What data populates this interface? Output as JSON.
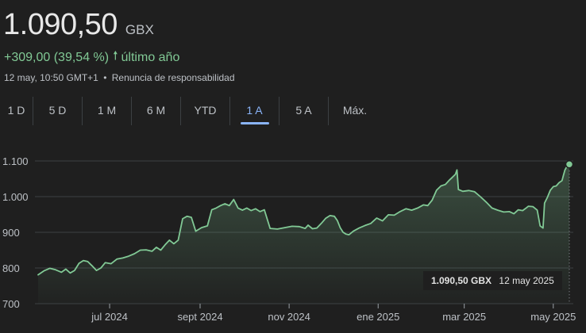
{
  "header": {
    "price": "1.090,50",
    "currency": "GBX",
    "change": "+309,00 (39,54 %)",
    "change_period": "último año",
    "timestamp": "12 may, 10:50 GMT+1",
    "separator": "•",
    "disclaimer": "Renuncia de responsabilidad",
    "up_color": "#81c995"
  },
  "tabs": [
    {
      "label": "1 D",
      "active": false
    },
    {
      "label": "5 D",
      "active": false
    },
    {
      "label": "1 M",
      "active": false
    },
    {
      "label": "6 M",
      "active": false
    },
    {
      "label": "YTD",
      "active": false
    },
    {
      "label": "1 A",
      "active": true
    },
    {
      "label": "5 A",
      "active": false
    },
    {
      "label": "Máx.",
      "active": false
    }
  ],
  "tooltip": {
    "value": "1.090,50 GBX",
    "date": "12 may 2025"
  },
  "chart_data": {
    "type": "area",
    "title": "",
    "xlabel": "",
    "ylabel": "",
    "ylim": [
      700,
      1100
    ],
    "yticks": [
      700,
      800,
      900,
      1000,
      1100
    ],
    "ytick_labels": [
      "700",
      "800",
      "900",
      "1.000",
      "1.100"
    ],
    "xlim": [
      "2024-05-13",
      "2025-05-12"
    ],
    "xticks": [
      "2024-07-01",
      "2024-09-01",
      "2024-11-01",
      "2025-01-01",
      "2025-03-01",
      "2025-05-01"
    ],
    "xtick_labels": [
      "jul 2024",
      "sept 2024",
      "nov 2024",
      "ene 2025",
      "mar 2025",
      "may 2025"
    ],
    "grid": "horizontal",
    "line_color": "#81c995",
    "series": [
      {
        "points": [
          [
            "2024-05-13",
            781
          ],
          [
            "2024-05-17",
            792
          ],
          [
            "2024-05-21",
            799
          ],
          [
            "2024-05-25",
            795
          ],
          [
            "2024-05-29",
            788
          ],
          [
            "2024-06-01",
            797
          ],
          [
            "2024-06-04",
            786
          ],
          [
            "2024-06-07",
            793
          ],
          [
            "2024-06-10",
            813
          ],
          [
            "2024-06-13",
            821
          ],
          [
            "2024-06-16",
            818
          ],
          [
            "2024-06-19",
            806
          ],
          [
            "2024-06-22",
            793
          ],
          [
            "2024-06-25",
            800
          ],
          [
            "2024-06-28",
            815
          ],
          [
            "2024-07-02",
            812
          ],
          [
            "2024-07-06",
            825
          ],
          [
            "2024-07-10",
            828
          ],
          [
            "2024-07-14",
            833
          ],
          [
            "2024-07-18",
            840
          ],
          [
            "2024-07-22",
            850
          ],
          [
            "2024-07-26",
            851
          ],
          [
            "2024-07-30",
            847
          ],
          [
            "2024-08-02",
            858
          ],
          [
            "2024-08-05",
            850
          ],
          [
            "2024-08-08",
            865
          ],
          [
            "2024-08-11",
            878
          ],
          [
            "2024-08-14",
            868
          ],
          [
            "2024-08-17",
            878
          ],
          [
            "2024-08-20",
            938
          ],
          [
            "2024-08-23",
            945
          ],
          [
            "2024-08-26",
            942
          ],
          [
            "2024-08-29",
            903
          ],
          [
            "2024-09-02",
            913
          ],
          [
            "2024-09-06",
            918
          ],
          [
            "2024-09-09",
            963
          ],
          [
            "2024-09-12",
            968
          ],
          [
            "2024-09-15",
            975
          ],
          [
            "2024-09-18",
            980
          ],
          [
            "2024-09-21",
            975
          ],
          [
            "2024-09-24",
            992
          ],
          [
            "2024-09-27",
            968
          ],
          [
            "2024-09-30",
            962
          ],
          [
            "2024-10-03",
            968
          ],
          [
            "2024-10-06",
            961
          ],
          [
            "2024-10-09",
            966
          ],
          [
            "2024-10-12",
            958
          ],
          [
            "2024-10-15",
            963
          ],
          [
            "2024-10-19",
            911
          ],
          [
            "2024-10-24",
            909
          ],
          [
            "2024-10-29",
            913
          ],
          [
            "2024-11-03",
            917
          ],
          [
            "2024-11-08",
            916
          ],
          [
            "2024-11-12",
            911
          ],
          [
            "2024-11-14",
            920
          ],
          [
            "2024-11-17",
            910
          ],
          [
            "2024-11-20",
            912
          ],
          [
            "2024-11-23",
            925
          ],
          [
            "2024-11-26",
            939
          ],
          [
            "2024-11-29",
            947
          ],
          [
            "2024-12-02",
            945
          ],
          [
            "2024-12-04",
            933
          ],
          [
            "2024-12-06",
            913
          ],
          [
            "2024-12-08",
            900
          ],
          [
            "2024-12-10",
            895
          ],
          [
            "2024-12-12",
            893
          ],
          [
            "2024-12-15",
            903
          ],
          [
            "2024-12-19",
            912
          ],
          [
            "2024-12-23",
            919
          ],
          [
            "2024-12-27",
            925
          ],
          [
            "2024-12-31",
            940
          ],
          [
            "2025-01-04",
            932
          ],
          [
            "2025-01-08",
            949
          ],
          [
            "2025-01-12",
            948
          ],
          [
            "2025-01-16",
            958
          ],
          [
            "2025-01-20",
            966
          ],
          [
            "2025-01-24",
            962
          ],
          [
            "2025-01-28",
            968
          ],
          [
            "2025-02-01",
            977
          ],
          [
            "2025-02-04",
            975
          ],
          [
            "2025-02-07",
            990
          ],
          [
            "2025-02-10",
            1018
          ],
          [
            "2025-02-13",
            1030
          ],
          [
            "2025-02-16",
            1034
          ],
          [
            "2025-02-19",
            1047
          ],
          [
            "2025-02-21",
            1055
          ],
          [
            "2025-02-23",
            1063
          ],
          [
            "2025-02-24",
            1075
          ],
          [
            "2025-02-25",
            1020
          ],
          [
            "2025-02-28",
            1015
          ],
          [
            "2025-03-04",
            1017
          ],
          [
            "2025-03-08",
            1014
          ],
          [
            "2025-03-12",
            1000
          ],
          [
            "2025-03-16",
            985
          ],
          [
            "2025-03-20",
            968
          ],
          [
            "2025-03-24",
            962
          ],
          [
            "2025-03-28",
            957
          ],
          [
            "2025-04-01",
            958
          ],
          [
            "2025-04-04",
            952
          ],
          [
            "2025-04-07",
            963
          ],
          [
            "2025-04-10",
            961
          ],
          [
            "2025-04-12",
            967
          ],
          [
            "2025-04-14",
            973
          ],
          [
            "2025-04-17",
            972
          ],
          [
            "2025-04-20",
            962
          ],
          [
            "2025-04-22",
            918
          ],
          [
            "2025-04-24",
            912
          ],
          [
            "2025-04-25",
            982
          ],
          [
            "2025-04-27",
            998
          ],
          [
            "2025-04-29",
            1018
          ],
          [
            "2025-05-01",
            1028
          ],
          [
            "2025-05-03",
            1030
          ],
          [
            "2025-05-05",
            1039
          ],
          [
            "2025-05-07",
            1045
          ],
          [
            "2025-05-08",
            1060
          ],
          [
            "2025-05-09",
            1075
          ],
          [
            "2025-05-10",
            1082
          ],
          [
            "2025-05-12",
            1090.5
          ]
        ]
      }
    ]
  }
}
